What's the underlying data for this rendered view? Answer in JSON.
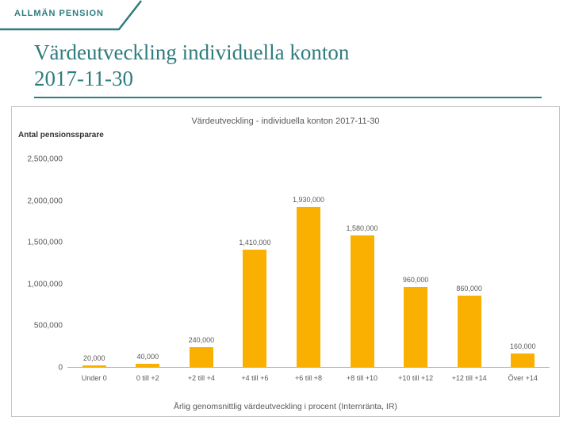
{
  "header": {
    "brand": "ALLMÄN PENSION"
  },
  "title": "Värdeutveckling individuella konton 2017-11-30",
  "colors": {
    "accent": "#2F7C7E",
    "bar": "#F9B000"
  },
  "chart_data": {
    "type": "bar",
    "title": "Värdeutveckling - individuella konton 2017-11-30",
    "ylabel": "Antal pensionssparare",
    "xlabel": "Årlig genomsnittlig värdeutveckling i procent (Internränta, IR)",
    "categories": [
      "Under 0",
      "0 till +2",
      "+2 till +4",
      "+4 till +6",
      "+6 till +8",
      "+8 till +10",
      "+10 till +12",
      "+12 till +14",
      "Över +14"
    ],
    "values": [
      20000,
      40000,
      240000,
      1410000,
      1930000,
      1580000,
      960000,
      860000,
      160000
    ],
    "value_labels": [
      "20,000",
      "40,000",
      "240,000",
      "1,410,000",
      "1,930,000",
      "1,580,000",
      "960,000",
      "860,000",
      "160,000"
    ],
    "ytick_labels": [
      "0",
      "500,000",
      "1,000,000",
      "1,500,000",
      "2,000,000",
      "2,500,000"
    ],
    "ylim": [
      0,
      2500000
    ],
    "grid": false,
    "legend": false,
    "bar_color": "#F9B000"
  }
}
